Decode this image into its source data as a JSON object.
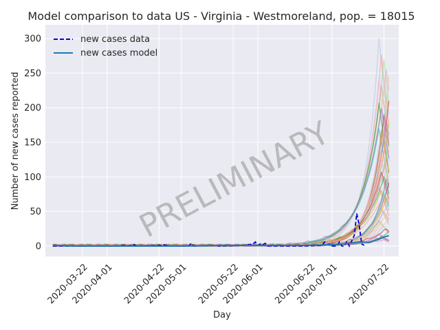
{
  "chart_data": {
    "type": "line",
    "title": "Model comparison to data US - Virginia - Westmoreland, pop. = 18015",
    "xlabel": "Day",
    "ylabel": "Number of new cases reported",
    "xlim": [
      "2020-03-07",
      "2020-07-28"
    ],
    "ylim": [
      -15,
      320
    ],
    "yticks": [
      0,
      50,
      100,
      150,
      200,
      250,
      300
    ],
    "xticks": [
      "2020-03-22",
      "2020-04-01",
      "2020-04-22",
      "2020-05-01",
      "2020-05-22",
      "2020-06-01",
      "2020-06-22",
      "2020-07-01",
      "2020-07-22"
    ],
    "grid": true,
    "legend_position": "top-left",
    "watermark": "PRELIMINARY",
    "colors": {
      "data": "#0000cc",
      "model": "#1f77b4",
      "background": "#eaeaf2",
      "grid": "#ffffff",
      "text": "#262626",
      "watermark": "#a8a8a8"
    },
    "series": [
      {
        "name": "new cases data",
        "style": "dashed",
        "points": [
          [
            "2020-03-10",
            0
          ],
          [
            "2020-03-20",
            0
          ],
          [
            "2020-04-05",
            0
          ],
          [
            "2020-04-08",
            1
          ],
          [
            "2020-04-09",
            0
          ],
          [
            "2020-04-12",
            2
          ],
          [
            "2020-04-13",
            0
          ],
          [
            "2020-04-23",
            1
          ],
          [
            "2020-04-24",
            2
          ],
          [
            "2020-04-26",
            0
          ],
          [
            "2020-05-04",
            0
          ],
          [
            "2020-05-05",
            4
          ],
          [
            "2020-05-06",
            0
          ],
          [
            "2020-05-15",
            1
          ],
          [
            "2020-05-16",
            0
          ],
          [
            "2020-05-26",
            1
          ],
          [
            "2020-05-30",
            3
          ],
          [
            "2020-05-31",
            6
          ],
          [
            "2020-06-01",
            1
          ],
          [
            "2020-06-02",
            3
          ],
          [
            "2020-06-03",
            2
          ],
          [
            "2020-06-04",
            4
          ],
          [
            "2020-06-05",
            0
          ],
          [
            "2020-06-20",
            0
          ],
          [
            "2020-06-27",
            1
          ],
          [
            "2020-06-28",
            6
          ],
          [
            "2020-06-29",
            2
          ],
          [
            "2020-06-30",
            3
          ],
          [
            "2020-07-01",
            0
          ],
          [
            "2020-07-03",
            0
          ],
          [
            "2020-07-04",
            6
          ],
          [
            "2020-07-05",
            0
          ],
          [
            "2020-07-06",
            0
          ],
          [
            "2020-07-07",
            7
          ],
          [
            "2020-07-08",
            0
          ],
          [
            "2020-07-10",
            15
          ],
          [
            "2020-07-11",
            47
          ],
          [
            "2020-07-12",
            30
          ],
          [
            "2020-07-13",
            3
          ],
          [
            "2020-07-14",
            1
          ]
        ]
      },
      {
        "name": "new cases model",
        "style": "solid",
        "points": [
          [
            "2020-03-10",
            1
          ],
          [
            "2020-03-20",
            0
          ],
          [
            "2020-04-10",
            0
          ],
          [
            "2020-05-01",
            0
          ],
          [
            "2020-05-20",
            1
          ],
          [
            "2020-06-01",
            1
          ],
          [
            "2020-06-20",
            1
          ],
          [
            "2020-07-01",
            2
          ],
          [
            "2020-07-08",
            4
          ],
          [
            "2020-07-12",
            6
          ],
          [
            "2020-07-16",
            5
          ],
          [
            "2020-07-20",
            10
          ],
          [
            "2020-07-22",
            13
          ],
          [
            "2020-07-24",
            15
          ]
        ]
      }
    ],
    "ensemble": {
      "description_values": "many faint model runs rising sharply after 2020-07-10",
      "peaks": [
        300,
        276,
        268,
        255,
        245,
        240,
        232,
        225,
        218,
        210,
        205,
        198,
        190,
        182,
        176,
        170,
        165,
        160,
        154,
        148,
        142,
        136,
        130,
        124,
        118,
        112,
        106,
        100,
        95,
        90,
        85,
        80,
        75,
        70,
        65,
        60,
        55,
        50,
        45,
        40,
        36,
        32,
        28,
        24,
        20,
        16,
        12,
        8
      ],
      "colors": [
        "#aec7e8",
        "#ff9896",
        "#98df8a",
        "#c5b0d5",
        "#ffbb78",
        "#f7b6d2",
        "#c49c94",
        "#dbdb8d",
        "#9edae5",
        "#d62728",
        "#2ca02c",
        "#9467bd",
        "#8c564b",
        "#e377c2",
        "#bcbd22",
        "#17becf",
        "#ff7f0e"
      ]
    }
  }
}
